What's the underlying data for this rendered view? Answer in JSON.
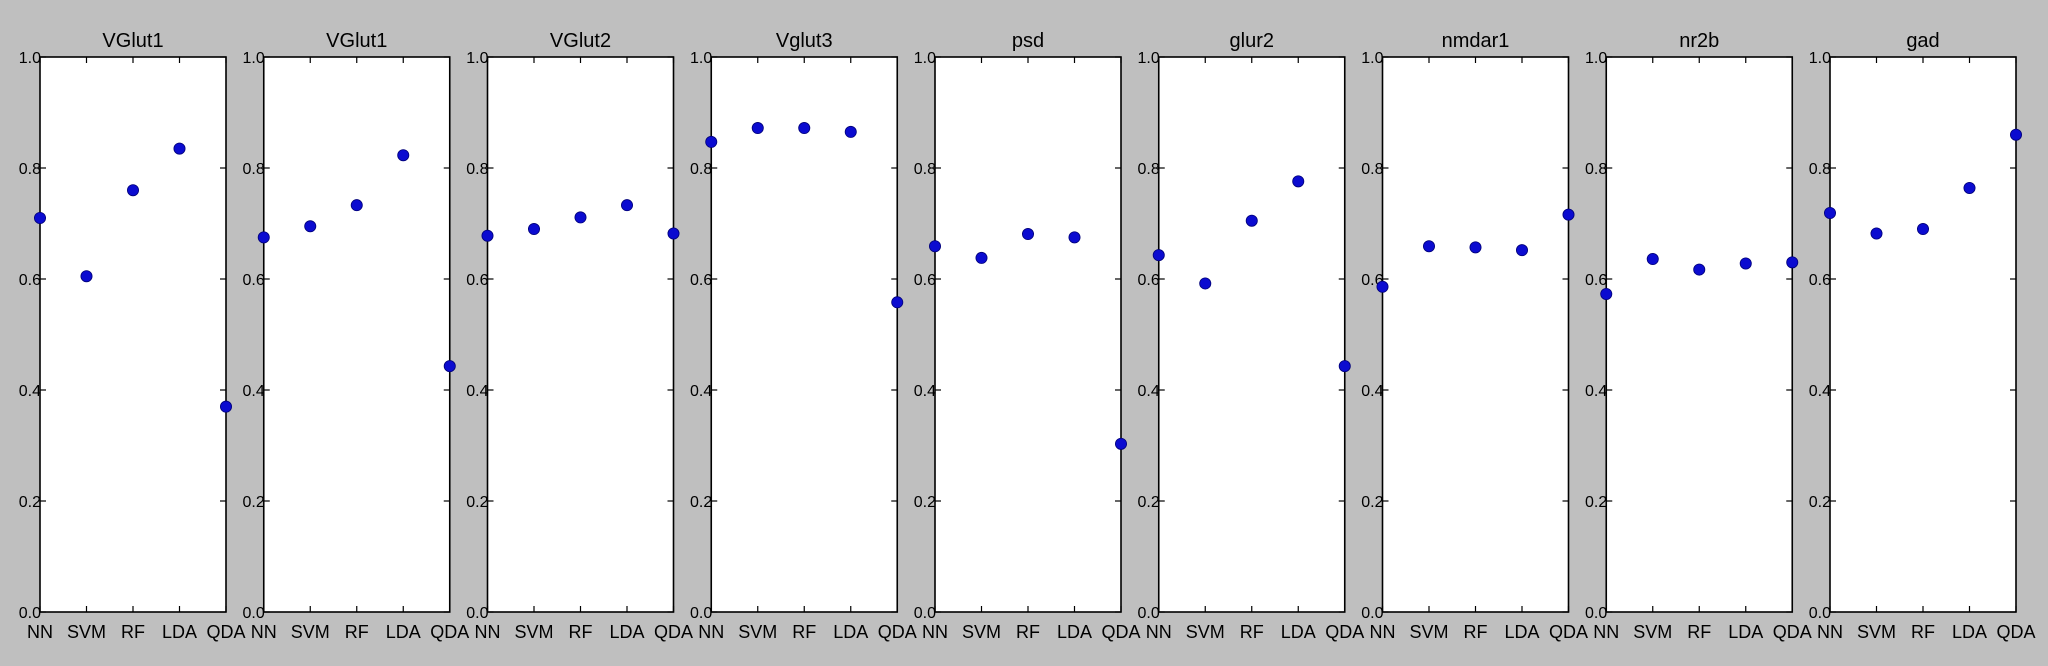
{
  "style": {
    "background": "#bfbfbf",
    "plot_background": "#ffffff",
    "marker_color": "#0b0bd0"
  },
  "chart_data": [
    {
      "type": "scatter",
      "title": "VGlut1",
      "categories": [
        "NN",
        "SVM",
        "RF",
        "LDA",
        "QDA"
      ],
      "values": [
        0.71,
        0.605,
        0.76,
        0.835,
        0.37
      ],
      "ylim": [
        0.0,
        1.0
      ],
      "yticks": [
        "0.0",
        "0.2",
        "0.4",
        "0.6",
        "0.8",
        "1.0"
      ],
      "grid": false,
      "legend": false
    },
    {
      "type": "scatter",
      "title": "VGlut1",
      "categories": [
        "NN",
        "SVM",
        "RF",
        "LDA",
        "QDA"
      ],
      "values": [
        0.675,
        0.695,
        0.733,
        0.823,
        0.443
      ],
      "ylim": [
        0.0,
        1.0
      ],
      "yticks": [
        "0.0",
        "0.2",
        "0.4",
        "0.6",
        "0.8",
        "1.0"
      ],
      "grid": false,
      "legend": false
    },
    {
      "type": "scatter",
      "title": "VGlut2",
      "categories": [
        "NN",
        "SVM",
        "RF",
        "LDA",
        "QDA"
      ],
      "values": [
        0.678,
        0.69,
        0.711,
        0.733,
        0.682
      ],
      "ylim": [
        0.0,
        1.0
      ],
      "yticks": [
        "0.0",
        "0.2",
        "0.4",
        "0.6",
        "0.8",
        "1.0"
      ],
      "grid": false,
      "legend": false
    },
    {
      "type": "scatter",
      "title": "Vglut3",
      "categories": [
        "NN",
        "SVM",
        "RF",
        "LDA",
        "QDA"
      ],
      "values": [
        0.847,
        0.872,
        0.872,
        0.865,
        0.558
      ],
      "ylim": [
        0.0,
        1.0
      ],
      "yticks": [
        "0.0",
        "0.2",
        "0.4",
        "0.6",
        "0.8",
        "1.0"
      ],
      "grid": false,
      "legend": false
    },
    {
      "type": "scatter",
      "title": "psd",
      "categories": [
        "NN",
        "SVM",
        "RF",
        "LDA",
        "QDA"
      ],
      "values": [
        0.659,
        0.638,
        0.681,
        0.675,
        0.303
      ],
      "ylim": [
        0.0,
        1.0
      ],
      "yticks": [
        "0.0",
        "0.2",
        "0.4",
        "0.6",
        "0.8",
        "1.0"
      ],
      "grid": false,
      "legend": false
    },
    {
      "type": "scatter",
      "title": "glur2",
      "categories": [
        "NN",
        "SVM",
        "RF",
        "LDA",
        "QDA"
      ],
      "values": [
        0.643,
        0.592,
        0.705,
        0.776,
        0.443
      ],
      "ylim": [
        0.0,
        1.0
      ],
      "yticks": [
        "0.0",
        "0.2",
        "0.4",
        "0.6",
        "0.8",
        "1.0"
      ],
      "grid": false,
      "legend": false
    },
    {
      "type": "scatter",
      "title": "nmdar1",
      "categories": [
        "NN",
        "SVM",
        "RF",
        "LDA",
        "QDA"
      ],
      "values": [
        0.586,
        0.659,
        0.657,
        0.652,
        0.716
      ],
      "ylim": [
        0.0,
        1.0
      ],
      "yticks": [
        "0.0",
        "0.2",
        "0.4",
        "0.6",
        "0.8",
        "1.0"
      ],
      "grid": false,
      "legend": false
    },
    {
      "type": "scatter",
      "title": "nr2b",
      "categories": [
        "NN",
        "SVM",
        "RF",
        "LDA",
        "QDA"
      ],
      "values": [
        0.573,
        0.636,
        0.617,
        0.628,
        0.63
      ],
      "ylim": [
        0.0,
        1.0
      ],
      "yticks": [
        "0.0",
        "0.2",
        "0.4",
        "0.6",
        "0.8",
        "1.0"
      ],
      "grid": false,
      "legend": false
    },
    {
      "type": "scatter",
      "title": "gad",
      "categories": [
        "NN",
        "SVM",
        "RF",
        "LDA",
        "QDA"
      ],
      "values": [
        0.719,
        0.682,
        0.69,
        0.764,
        0.86
      ],
      "ylim": [
        0.0,
        1.0
      ],
      "yticks": [
        "0.0",
        "0.2",
        "0.4",
        "0.6",
        "0.8",
        "1.0"
      ],
      "grid": false,
      "legend": false
    }
  ]
}
